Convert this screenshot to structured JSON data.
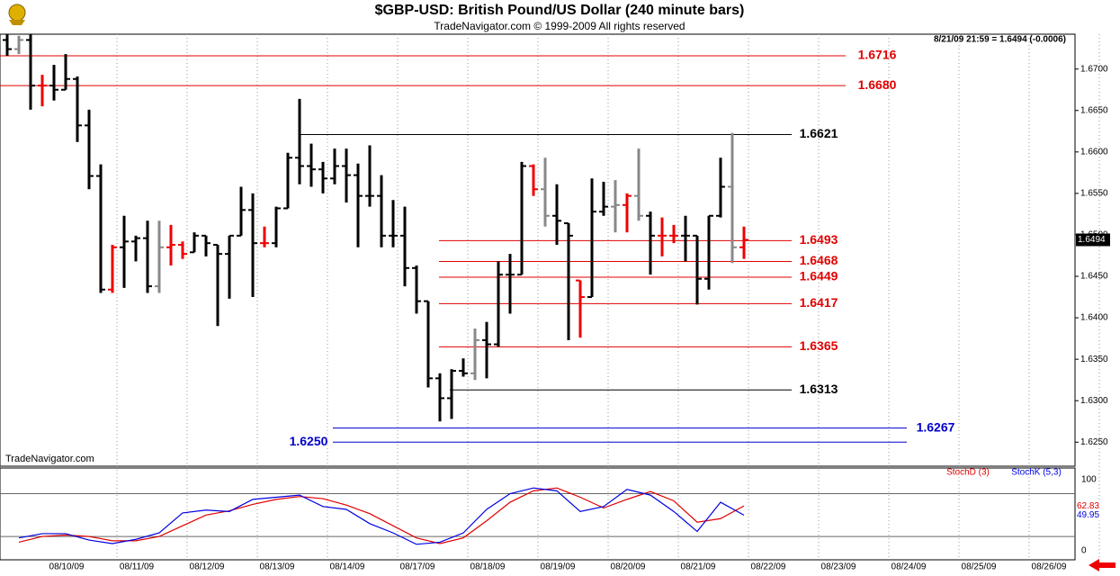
{
  "title": "$GBP-USD:  British Pound/US Dollar  (240 minute bars)",
  "subtitle": "TradeNavigator.com © 1999-2009 All rights reserved",
  "status": "8/21/09 21:59 = 1.6494 (-0.0006)",
  "watermark": "TradeNavigator.com",
  "chart_data": [
    {
      "type": "ohlc",
      "categories": [
        "08/10/09",
        "08/11/09",
        "08/12/09",
        "08/13/09",
        "08/14/09",
        "08/17/09",
        "08/18/09",
        "08/19/09",
        "08/20/09",
        "08/21/09",
        "08/22/09",
        "08/23/09",
        "08/24/09",
        "08/25/09",
        "08/26/09"
      ],
      "open": [
        1.6735,
        1.6724,
        1.6735,
        1.668,
        1.668,
        1.6675,
        1.6688,
        1.6632,
        1.6571,
        1.6434,
        1.6485,
        1.6492,
        1.6496,
        1.6438,
        1.6485,
        1.6488,
        1.6479,
        1.6499,
        1.6488,
        1.6477,
        1.6499,
        1.653,
        1.649,
        1.649,
        1.6532,
        1.6593,
        1.6583,
        1.6579,
        1.6568,
        1.6583,
        1.6572,
        1.6547,
        1.6547,
        1.6499,
        1.6499,
        1.646,
        1.642,
        1.6327,
        1.6303,
        1.6336,
        1.6333,
        1.6373,
        1.6368,
        1.6452,
        1.6452,
        1.6583,
        1.6555,
        1.6523,
        1.6514,
        1.6445,
        1.6425,
        1.6528,
        1.6534,
        1.6536,
        1.6547,
        1.6523,
        1.6499,
        1.6499,
        1.6499,
        1.6499,
        1.6447,
        1.6523,
        1.6558,
        1.6485
      ],
      "high": [
        1.6742,
        1.674,
        1.6742,
        1.6693,
        1.6705,
        1.6718,
        1.6691,
        1.6651,
        1.6585,
        1.6488,
        1.6523,
        1.6499,
        1.6517,
        1.6517,
        1.6512,
        1.6492,
        1.6503,
        1.6499,
        1.6488,
        1.6499,
        1.6558,
        1.655,
        1.651,
        1.6534,
        1.6599,
        1.6664,
        1.661,
        1.6588,
        1.6604,
        1.6604,
        1.6586,
        1.6608,
        1.6572,
        1.6542,
        1.6534,
        1.6463,
        1.642,
        1.6333,
        1.6338,
        1.6351,
        1.6387,
        1.6395,
        1.6468,
        1.6477,
        1.6588,
        1.6585,
        1.6593,
        1.6561,
        1.6514,
        1.6445,
        1.6568,
        1.6564,
        1.6566,
        1.655,
        1.6604,
        1.6528,
        1.6521,
        1.6512,
        1.6523,
        1.6499,
        1.6523,
        1.6593,
        1.6623,
        1.651
      ],
      "low": [
        1.6716,
        1.6718,
        1.6651,
        1.6655,
        1.6662,
        1.6675,
        1.6612,
        1.6555,
        1.643,
        1.643,
        1.6436,
        1.6468,
        1.643,
        1.643,
        1.6463,
        1.6471,
        1.6479,
        1.6474,
        1.639,
        1.6423,
        1.6499,
        1.6425,
        1.6485,
        1.6485,
        1.6532,
        1.6561,
        1.6558,
        1.655,
        1.6561,
        1.6539,
        1.6485,
        1.6534,
        1.6485,
        1.6485,
        1.6438,
        1.6405,
        1.6316,
        1.6275,
        1.6278,
        1.6329,
        1.6325,
        1.6327,
        1.6365,
        1.6405,
        1.6452,
        1.6547,
        1.651,
        1.6488,
        1.6373,
        1.6376,
        1.6425,
        1.6523,
        1.6503,
        1.6503,
        1.6517,
        1.6452,
        1.6474,
        1.649,
        1.6468,
        1.6416,
        1.6434,
        1.6521,
        1.6466,
        1.6471
      ],
      "close": [
        1.6724,
        1.6735,
        1.668,
        1.668,
        1.6675,
        1.6688,
        1.6632,
        1.6571,
        1.6434,
        1.6485,
        1.6492,
        1.6496,
        1.6438,
        1.6485,
        1.6488,
        1.6477,
        1.6499,
        1.649,
        1.6477,
        1.6499,
        1.653,
        1.649,
        1.649,
        1.6532,
        1.6593,
        1.6583,
        1.6579,
        1.6568,
        1.6583,
        1.6572,
        1.6547,
        1.6547,
        1.6499,
        1.6499,
        1.646,
        1.642,
        1.6327,
        1.6303,
        1.6336,
        1.6333,
        1.6373,
        1.6368,
        1.6452,
        1.6452,
        1.6583,
        1.6555,
        1.6523,
        1.6517,
        1.6499,
        1.6425,
        1.6528,
        1.6534,
        1.6536,
        1.6547,
        1.6523,
        1.6499,
        1.6499,
        1.6499,
        1.6499,
        1.6447,
        1.6523,
        1.6558,
        1.6485,
        1.6494
      ],
      "colors": [
        "#000",
        "#888",
        "#000",
        "#e00",
        "#000",
        "#000",
        "#000",
        "#000",
        "#000",
        "#e00",
        "#000",
        "#000",
        "#000",
        "#888",
        "#e00",
        "#e00",
        "#000",
        "#000",
        "#000",
        "#000",
        "#000",
        "#000",
        "#e00",
        "#000",
        "#000",
        "#000",
        "#000",
        "#000",
        "#000",
        "#000",
        "#000",
        "#000",
        "#000",
        "#000",
        "#000",
        "#000",
        "#000",
        "#000",
        "#000",
        "#000",
        "#888",
        "#000",
        "#000",
        "#000",
        "#000",
        "#e00",
        "#888",
        "#000",
        "#000",
        "#e00",
        "#000",
        "#000",
        "#888",
        "#e00",
        "#888",
        "#000",
        "#e00",
        "#e00",
        "#000",
        "#000",
        "#000",
        "#000",
        "#888",
        "#e00"
      ],
      "ylim": [
        1.6221,
        1.6742
      ],
      "yticks": [
        {
          "value": 1.625,
          "label": "1.6250"
        },
        {
          "value": 1.63,
          "label": "1.6300"
        },
        {
          "value": 1.635,
          "label": "1.6350"
        },
        {
          "value": 1.64,
          "label": "1.6400"
        },
        {
          "value": 1.645,
          "label": "1.6450"
        },
        {
          "value": 1.65,
          "label": "1.6500"
        },
        {
          "value": 1.655,
          "label": "1.6550"
        },
        {
          "value": 1.66,
          "label": "1.6600"
        },
        {
          "value": 1.665,
          "label": "1.6650"
        },
        {
          "value": 1.67,
          "label": "1.6700"
        }
      ],
      "last_price": 1.6494,
      "levels": [
        {
          "value": 1.6716,
          "label": "1.6716",
          "color": "#e00000"
        },
        {
          "value": 1.668,
          "label": "1.6680",
          "color": "#e00000"
        },
        {
          "value": 1.6621,
          "label": "1.6621",
          "color": "#000000"
        },
        {
          "value": 1.6493,
          "label": "1.6493",
          "color": "#e00000"
        },
        {
          "value": 1.6468,
          "label": "1.6468",
          "color": "#e00000"
        },
        {
          "value": 1.6449,
          "label": "1.6449",
          "color": "#e00000"
        },
        {
          "value": 1.6417,
          "label": "1.6417",
          "color": "#e00000"
        },
        {
          "value": 1.6365,
          "label": "1.6365",
          "color": "#e00000"
        },
        {
          "value": 1.6313,
          "label": "1.6313",
          "color": "#000000"
        },
        {
          "value": 1.6267,
          "label": "1.6267",
          "color": "#0000cc"
        },
        {
          "value": 1.625,
          "label": "1.6250",
          "color": "#0000cc"
        }
      ]
    },
    {
      "type": "line",
      "series": [
        {
          "name": "StochD (3)",
          "color": "#e00000",
          "values": [
            12,
            20,
            22,
            20,
            14,
            14,
            20,
            35,
            50,
            56,
            65,
            72,
            76,
            73,
            64,
            52,
            35,
            18,
            10,
            18,
            42,
            68,
            84,
            88,
            75,
            60,
            72,
            83,
            70,
            40,
            45,
            62.83
          ]
        },
        {
          "name": "StochK (5,3)",
          "color": "#0000e0",
          "values": [
            18,
            24,
            24,
            15,
            10,
            16,
            25,
            53,
            57,
            55,
            72,
            75,
            78,
            62,
            58,
            38,
            25,
            9,
            12,
            25,
            58,
            80,
            88,
            84,
            55,
            62,
            86,
            78,
            55,
            27,
            68,
            49.95
          ]
        }
      ],
      "ylim": [
        -12.7,
        116
      ],
      "yticks": [
        0,
        100
      ],
      "guides": [
        20,
        80
      ]
    }
  ]
}
